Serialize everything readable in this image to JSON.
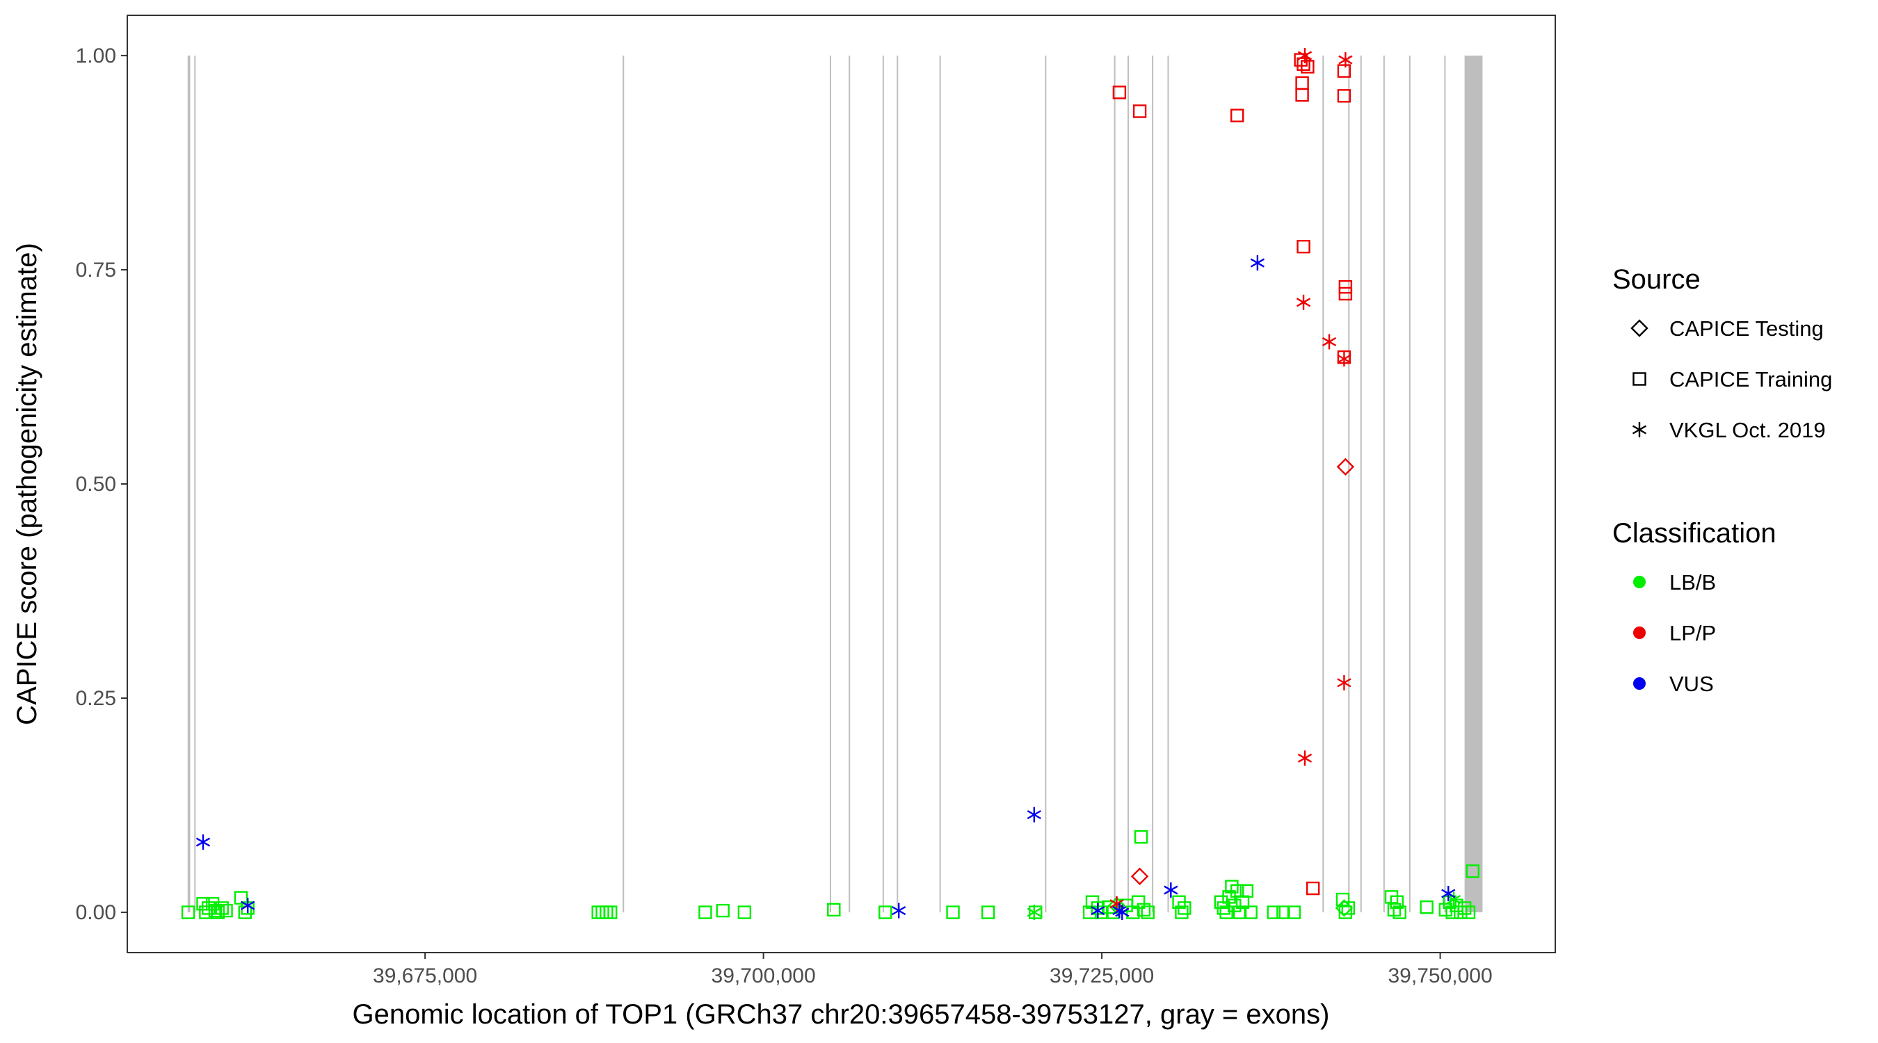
{
  "chart_data": {
    "type": "scatter",
    "xlabel": "Genomic location of TOP1 (GRCh37 chr20:39657458-39753127, gray = exons)",
    "ylabel": "CAPICE score (pathogenicity estimate)",
    "xlim": [
      39653000,
      39758500
    ],
    "ylim": [
      -0.047,
      1.047
    ],
    "x_ticks": [
      39675000,
      39700000,
      39725000,
      39750000
    ],
    "x_tick_labels": [
      "39,675,000",
      "39,700,000",
      "39,725,000",
      "39,750,000"
    ],
    "y_ticks": [
      0,
      0.25,
      0.5,
      0.75,
      1
    ],
    "y_tick_labels": [
      "0.00",
      "0.25",
      "0.50",
      "0.75",
      "1.00"
    ],
    "grid": false,
    "legend_position": "right",
    "exons": [
      [
        39657458,
        39657650
      ],
      [
        39657950,
        39658050
      ],
      [
        39689600,
        39689700
      ],
      [
        39704900,
        39705000
      ],
      [
        39706300,
        39706400
      ],
      [
        39708800,
        39708900
      ],
      [
        39709850,
        39709950
      ],
      [
        39713000,
        39713100
      ],
      [
        39720800,
        39720900
      ],
      [
        39725900,
        39726000
      ],
      [
        39726900,
        39727000
      ],
      [
        39728700,
        39728800
      ],
      [
        39729850,
        39729950
      ],
      [
        39741300,
        39741400
      ],
      [
        39743200,
        39743300
      ],
      [
        39744100,
        39744200
      ],
      [
        39745800,
        39745900
      ],
      [
        39747700,
        39747800
      ],
      [
        39750300,
        39750400
      ],
      [
        39751800,
        39753127
      ]
    ],
    "exon_color": "#bebebe",
    "legend": {
      "source_title": "Source",
      "source_items": [
        {
          "label": "CAPICE Testing",
          "shape": "diamond"
        },
        {
          "label": "CAPICE Training",
          "shape": "square"
        },
        {
          "label": "VKGL Oct. 2019",
          "shape": "asterisk"
        }
      ],
      "class_title": "Classification",
      "class_items": [
        {
          "label": "LB/B",
          "color": "#00ee00"
        },
        {
          "label": "LP/P",
          "color": "#ee0000"
        },
        {
          "label": "VUS",
          "color": "#0000ee"
        }
      ]
    },
    "series": [
      {
        "source": "CAPICE Training",
        "classification": "LB/B",
        "shape": "square",
        "color": "#00ee00",
        "points": [
          [
            39657500,
            0.0
          ],
          [
            39658600,
            0.01
          ],
          [
            39658800,
            0.0
          ],
          [
            39659000,
            0.005
          ],
          [
            39659300,
            0.01
          ],
          [
            39659500,
            0.002
          ],
          [
            39659700,
            0.0
          ],
          [
            39660000,
            0.005
          ],
          [
            39660300,
            0.002
          ],
          [
            39661400,
            0.017
          ],
          [
            39661700,
            0.0
          ],
          [
            39661900,
            0.005
          ],
          [
            39687800,
            0.0
          ],
          [
            39688100,
            0.0
          ],
          [
            39688400,
            0.0
          ],
          [
            39688700,
            0.0
          ],
          [
            39695700,
            0.0
          ],
          [
            39697000,
            0.002
          ],
          [
            39698600,
            0.0
          ],
          [
            39705200,
            0.003
          ],
          [
            39709000,
            0.0
          ],
          [
            39714000,
            0.0
          ],
          [
            39716600,
            0.0
          ],
          [
            39720100,
            0.0
          ],
          [
            39724100,
            0.0
          ],
          [
            39724300,
            0.012
          ],
          [
            39724700,
            0.005
          ],
          [
            39725000,
            0.0
          ],
          [
            39725500,
            0.006
          ],
          [
            39725800,
            0.0
          ],
          [
            39726800,
            0.008
          ],
          [
            39727300,
            0.0
          ],
          [
            39727700,
            0.012
          ],
          [
            39727900,
            0.088
          ],
          [
            39728100,
            0.003
          ],
          [
            39728400,
            0.0
          ],
          [
            39730700,
            0.012
          ],
          [
            39730900,
            0.0
          ],
          [
            39731100,
            0.005
          ],
          [
            39733800,
            0.012
          ],
          [
            39734000,
            0.005
          ],
          [
            39734200,
            0.0
          ],
          [
            39734400,
            0.018
          ],
          [
            39734600,
            0.03
          ],
          [
            39734800,
            0.008
          ],
          [
            39735000,
            0.025
          ],
          [
            39735200,
            0.0
          ],
          [
            39735400,
            0.012
          ],
          [
            39735700,
            0.025
          ],
          [
            39736000,
            0.0
          ],
          [
            39737700,
            0.0
          ],
          [
            39738400,
            0.0
          ],
          [
            39739200,
            0.0
          ],
          [
            39742800,
            0.015
          ],
          [
            39743000,
            0.0
          ],
          [
            39743200,
            0.005
          ],
          [
            39746400,
            0.018
          ],
          [
            39746600,
            0.003
          ],
          [
            39746800,
            0.012
          ],
          [
            39747000,
            0.0
          ],
          [
            39749000,
            0.006
          ],
          [
            39750400,
            0.003
          ],
          [
            39750700,
            0.012
          ],
          [
            39750900,
            0.0
          ],
          [
            39751200,
            0.008
          ],
          [
            39751500,
            0.0
          ],
          [
            39751800,
            0.005
          ],
          [
            39752100,
            0.0
          ],
          [
            39752400,
            0.048
          ]
        ]
      },
      {
        "source": "CAPICE Training",
        "classification": "LP/P",
        "shape": "square",
        "color": "#ee0000",
        "points": [
          [
            39726300,
            0.957
          ],
          [
            39727800,
            0.935
          ],
          [
            39735000,
            0.93
          ],
          [
            39739700,
            0.995
          ],
          [
            39739900,
            0.99
          ],
          [
            39739800,
            0.968
          ],
          [
            39739800,
            0.954
          ],
          [
            39740200,
            0.987
          ],
          [
            39739900,
            0.777
          ],
          [
            39740600,
            0.028
          ],
          [
            39742900,
            0.982
          ],
          [
            39742900,
            0.953
          ],
          [
            39743000,
            0.73
          ],
          [
            39743000,
            0.722
          ],
          [
            39742900,
            0.648
          ]
        ]
      },
      {
        "source": "CAPICE Testing",
        "classification": "LB/B",
        "shape": "diamond",
        "color": "#00ee00",
        "points": [
          [
            39726100,
            0.008
          ],
          [
            39742900,
            0.005
          ]
        ]
      },
      {
        "source": "CAPICE Testing",
        "classification": "LP/P",
        "shape": "diamond",
        "color": "#ee0000",
        "points": [
          [
            39727800,
            0.042
          ],
          [
            39743000,
            0.52
          ]
        ]
      },
      {
        "source": "VKGL Oct. 2019",
        "classification": "LB/B",
        "shape": "asterisk",
        "color": "#00ee00",
        "points": [
          [
            39720000,
            0.0
          ],
          [
            39751000,
            0.015
          ]
        ]
      },
      {
        "source": "VKGL Oct. 2019",
        "classification": "LP/P",
        "shape": "asterisk",
        "color": "#ee0000",
        "points": [
          [
            39726100,
            0.01
          ],
          [
            39740000,
            1.0
          ],
          [
            39739900,
            0.712
          ],
          [
            39740000,
            0.18
          ],
          [
            39741800,
            0.666
          ],
          [
            39743000,
            0.995
          ],
          [
            39742900,
            0.646
          ],
          [
            39742900,
            0.268
          ]
        ]
      },
      {
        "source": "VKGL Oct. 2019",
        "classification": "VUS",
        "shape": "asterisk",
        "color": "#0000ee",
        "points": [
          [
            39658600,
            0.082
          ],
          [
            39661900,
            0.008
          ],
          [
            39710000,
            0.002
          ],
          [
            39720000,
            0.114
          ],
          [
            39724700,
            0.002
          ],
          [
            39726500,
            0.0
          ],
          [
            39726300,
            0.002
          ],
          [
            39730100,
            0.026
          ],
          [
            39736500,
            0.758
          ],
          [
            39750600,
            0.022
          ]
        ]
      }
    ]
  }
}
